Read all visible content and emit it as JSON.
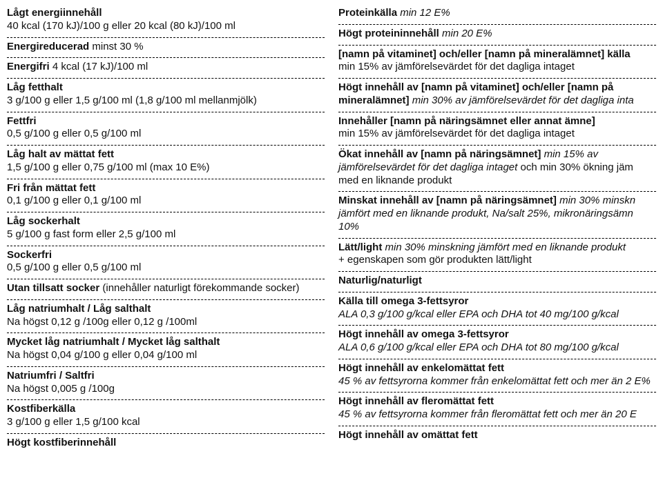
{
  "left": [
    {
      "bold": "Lågt energiinnehåll",
      "rest": "\n40 kcal (170 kJ)/100 g eller 20 kcal (80 kJ)/100 ml"
    },
    {
      "bold": "Energireducerad",
      "rest": " minst 30 %"
    },
    {
      "bold": "Energifri",
      "rest": " 4 kcal (17 kJ)/100 ml"
    },
    {
      "bold": "Låg fetthalt",
      "rest": "\n3 g/100 g eller 1,5 g/100 ml (1,8 g/100 ml mellanmjölk)"
    },
    {
      "bold": "Fettfri",
      "rest": "\n0,5 g/100 g eller 0,5 g/100 ml"
    },
    {
      "bold": "Låg halt av mättat fett",
      "rest": "\n1,5 g/100 g eller 0,75 g/100 ml (max 10 E%)"
    },
    {
      "bold": "Fri från mättat fett",
      "rest": "\n0,1 g/100 g eller 0,1 g/100 ml"
    },
    {
      "bold": "Låg sockerhalt",
      "rest": "\n5 g/100 g fast form eller 2,5 g/100 ml"
    },
    {
      "bold": "Sockerfri",
      "rest": "\n0,5 g/100 g eller 0,5 g/100 ml"
    },
    {
      "bold": "Utan tillsatt socker",
      "rest": " (innehåller naturligt förekommande socker)"
    },
    {
      "bold": "Låg natriumhalt / Låg salthalt",
      "rest": "\nNa högst 0,12 g /100g eller 0,12 g /100ml"
    },
    {
      "bold": "Mycket låg natriumhalt / Mycket låg salthalt",
      "rest": "\nNa högst 0,04 g/100 g eller 0,04 g/100 ml"
    },
    {
      "bold": "Natriumfri / Saltfri",
      "rest": "\nNa högst 0,005 g /100g"
    },
    {
      "bold": "Kostfiberkälla",
      "rest": "\n3 g/100 g eller 1,5 g/100 kcal"
    },
    {
      "bold": "Högt kostfiberinnehåll",
      "rest": "",
      "noborder": true
    }
  ],
  "right": [
    {
      "bold": "Proteinkälla",
      "italic": " min 12 E%",
      "rest": ""
    },
    {
      "bold": "Högt proteininnehåll",
      "italic": " min 20 E%",
      "rest": ""
    },
    {
      "bold": "[namn på vitaminet] och/eller [namn på mineralämnet] källa",
      "rest": "\nmin 15% av jämförelsevärdet för det dagliga intaget"
    },
    {
      "bold": "Högt innehåll av [namn på vitaminet] och/eller [namn på mineralämnet]",
      "italic": " min 30% av jämförelsevärdet för det dagliga inta",
      "rest": ""
    },
    {
      "bold": "Innehåller [namn på näringsämnet eller annat ämne]",
      "rest": "\nmin 15% av jämförelsevärdet för det dagliga intaget"
    },
    {
      "bold": "Ökat innehåll av [namn på näringsämnet]",
      "italic": " min 15% av jämförelsevärdet för det dagliga intaget",
      "rest": " och min 30% ökning jäm med en liknande produkt"
    },
    {
      "bold": "Minskat innehåll av [namn på näringsämnet]",
      "italic": " min 30% minskn jämfört med en liknande produkt, Na/salt 25%, mikronäringsämn 10%",
      "rest": ""
    },
    {
      "bold": "Lätt/light",
      "italic": " min 30% minskning jämfört med en liknande produkt",
      "rest": "\n + egenskapen som gör produkten lätt/light"
    },
    {
      "bold": "Naturlig/naturligt",
      "rest": ""
    },
    {
      "bold": "Källa till omega 3-fettsyror",
      "italic": "\nALA 0,3 g/100 g/kcal eller EPA och DHA tot 40 mg/100 g/kcal",
      "rest": ""
    },
    {
      "bold": "Högt innehåll av omega 3-fettsyror",
      "italic": "\nALA 0,6 g/100 g/kcal eller EPA och DHA tot 80 mg/100 g/kcal",
      "rest": ""
    },
    {
      "bold": "Högt innehåll av enkelomättat fett",
      "italic": "\n45 % av fettsyrorna kommer från enkelomättat fett och  mer än 2 E%",
      "rest": ""
    },
    {
      "bold": "Högt innehåll av fleromättat fett",
      "italic": "\n45 % av fettsyrorna kommer från fleromättat fett och mer än 20 E",
      "rest": ""
    },
    {
      "bold": "Högt innehåll av omättat fett",
      "rest": "",
      "noborder": true
    }
  ]
}
